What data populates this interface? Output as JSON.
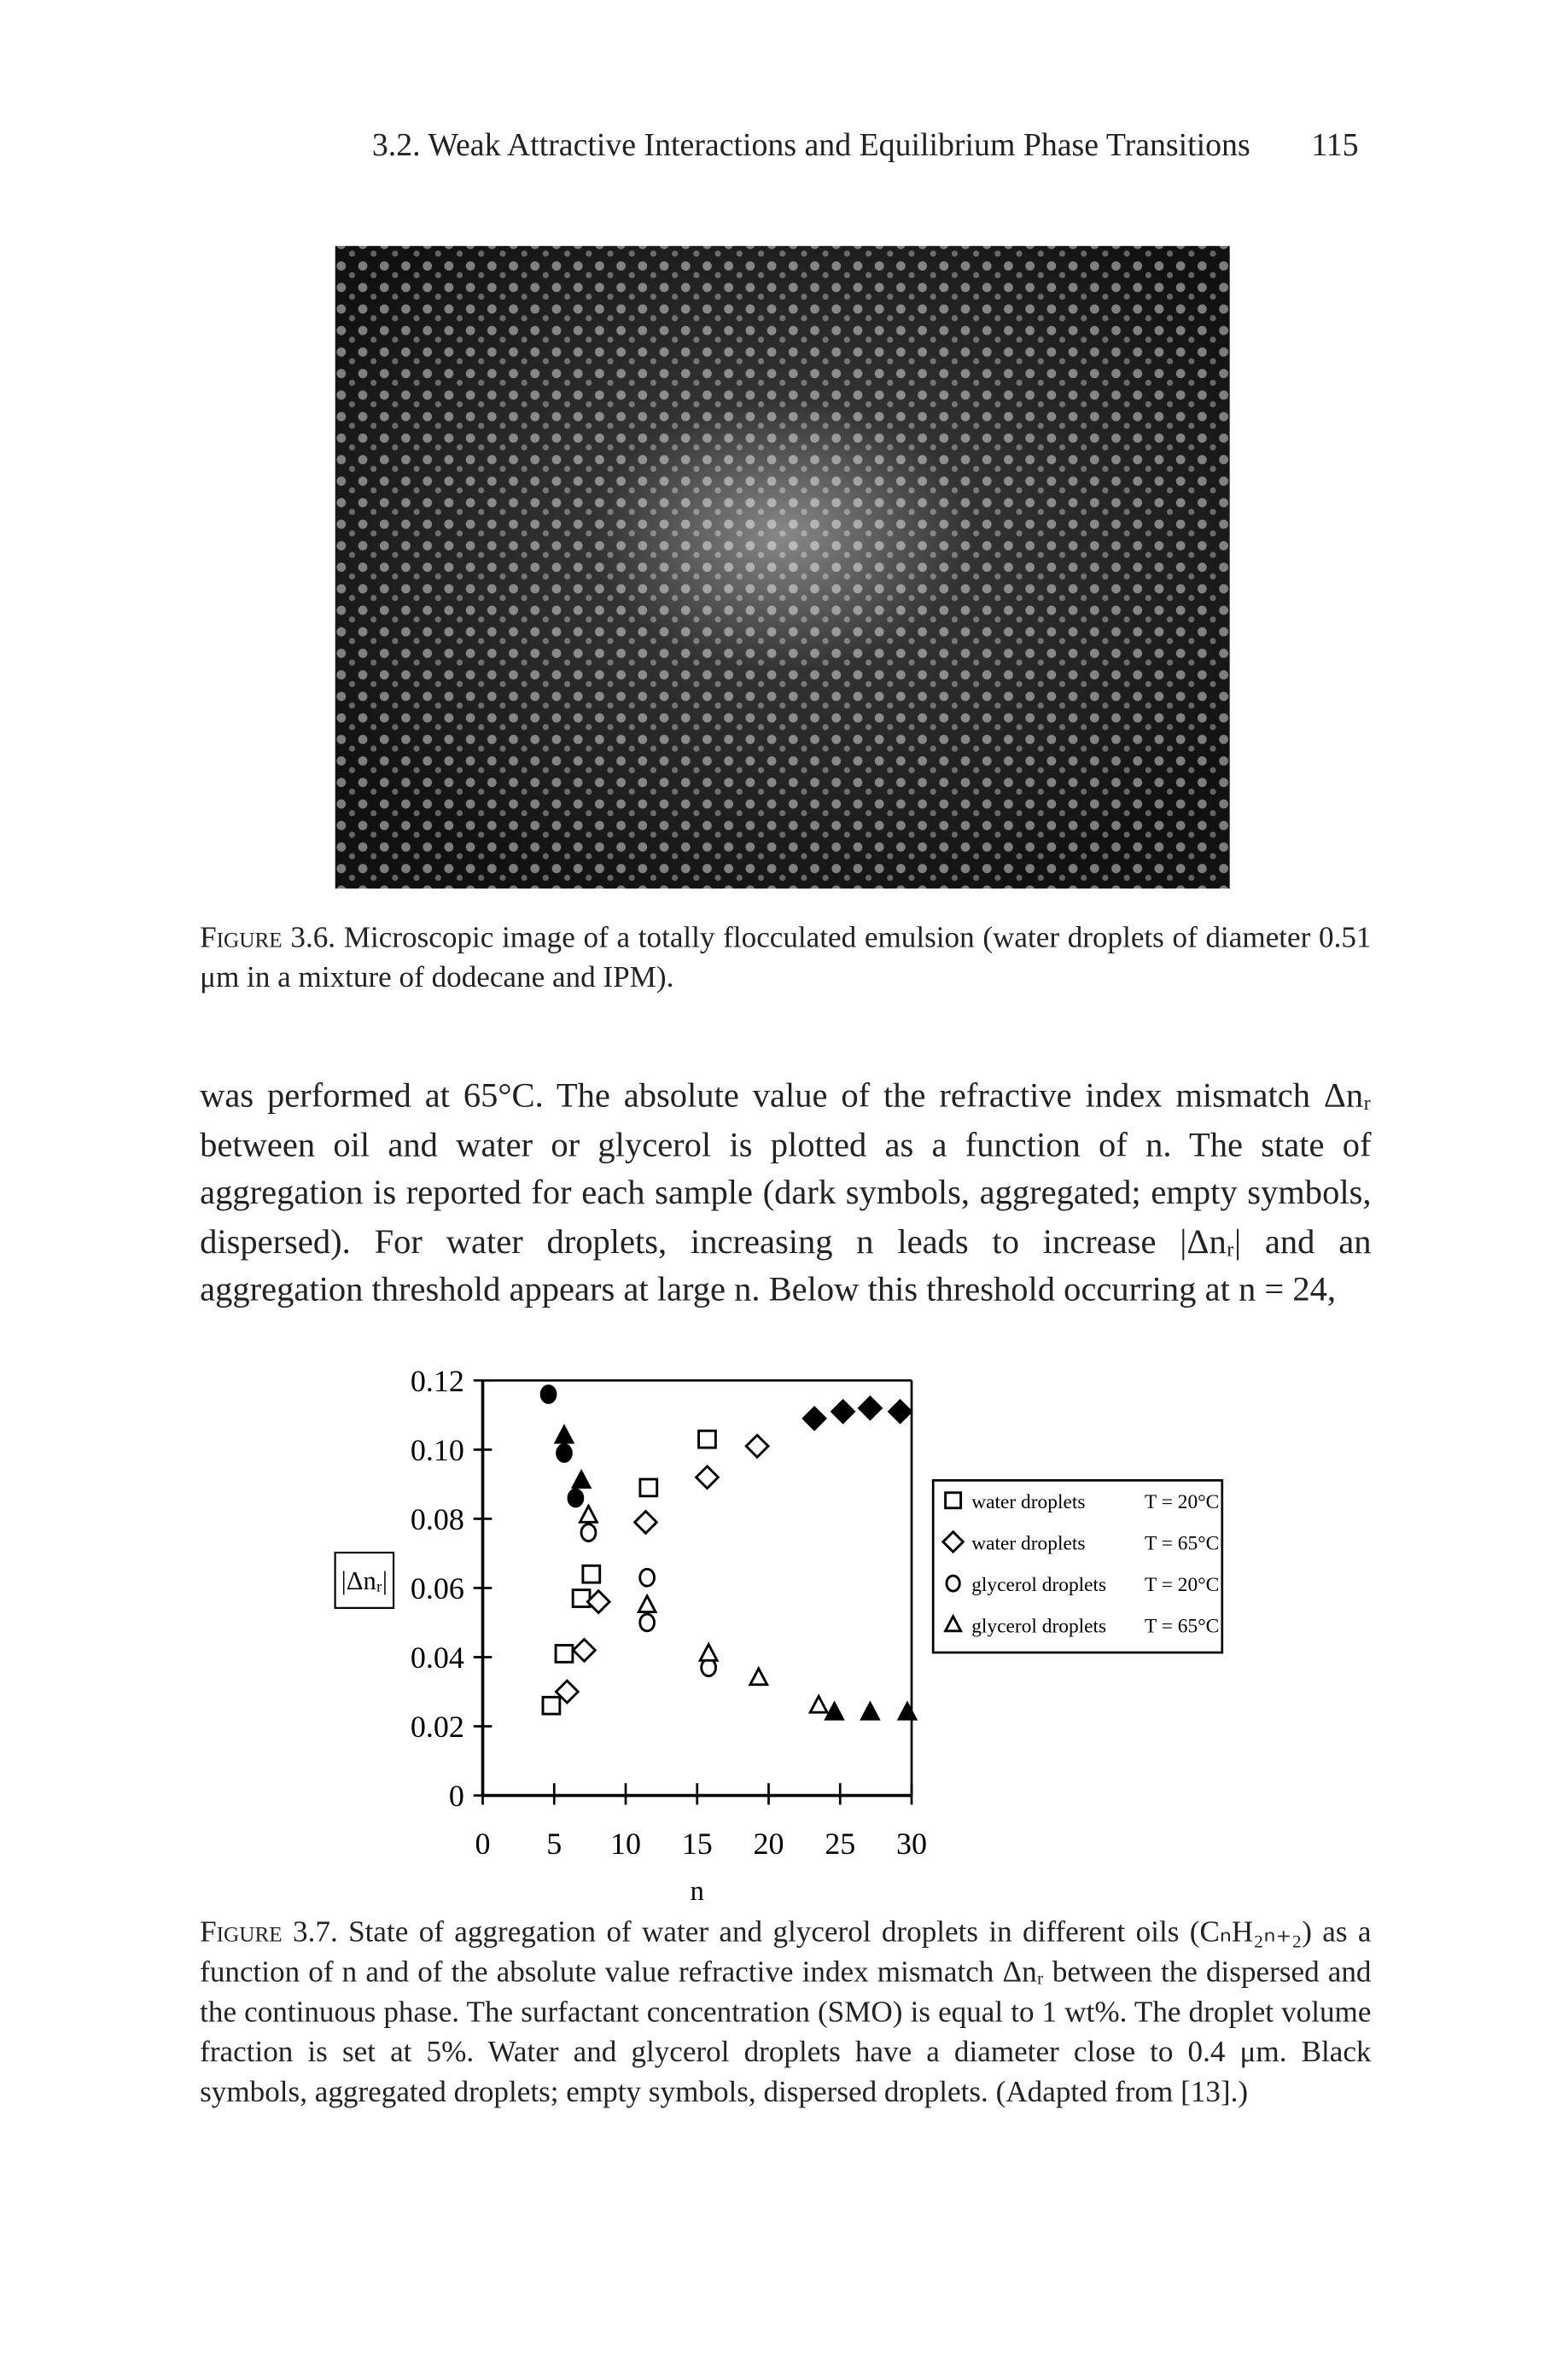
{
  "header": {
    "title": "3.2. Weak Attractive Interactions and Equilibrium Phase Transitions",
    "page": "115"
  },
  "figure_3_6": {
    "label": "Figure 3.6.",
    "caption": "Microscopic image of a totally flocculated emulsion (water droplets of diameter 0.51 μm in a mixture of dodecane and IPM)."
  },
  "body": {
    "paragraph": "was performed at 65°C. The absolute value of the refractive index mismatch Δnᵣ between oil and water or glycerol is plotted as a function of n. The state of aggregation is reported for each sample (dark symbols, aggregated; empty symbols, dispersed). For water droplets, increasing n leads to increase |Δnᵣ| and an aggregation threshold appears at large n. Below this threshold occurring at n = 24,"
  },
  "chart_data": {
    "type": "scatter",
    "x_label": "n",
    "y_label": "|Δnᵣ|",
    "xlim": [
      0,
      30
    ],
    "xticks": [
      0,
      5,
      10,
      15,
      20,
      25,
      30
    ],
    "ylim": [
      0,
      0.12
    ],
    "yticks": [
      0,
      0.02,
      0.04,
      0.06,
      0.08,
      {
        "value": 0.1,
        "label": "0.10"
      },
      0.12
    ],
    "legend": "right",
    "color": "#000000",
    "series": [
      {
        "name": "water droplets",
        "condition": "T = 20°C",
        "marker": "square",
        "x": [
          4.8,
          5.7,
          6.9,
          7.6,
          11.6,
          15.7
        ],
        "values": [
          0.026,
          0.041,
          0.057,
          0.064,
          0.089,
          0.103
        ],
        "filled": [
          false,
          false,
          false,
          false,
          false,
          false
        ]
      },
      {
        "name": "water droplets",
        "condition": "T = 65°C",
        "marker": "diamond",
        "x": [
          5.9,
          7.1,
          8.1,
          11.4,
          15.7,
          19.2,
          23.2,
          25.2,
          27.1,
          29.2
        ],
        "values": [
          0.03,
          0.042,
          0.056,
          0.079,
          0.092,
          0.101,
          0.109,
          0.111,
          0.112,
          0.111
        ],
        "filled": [
          false,
          false,
          false,
          false,
          false,
          false,
          true,
          true,
          true,
          true
        ]
      },
      {
        "name": "glycerol droplets",
        "condition": "T = 20°C",
        "marker": "circle",
        "x": [
          4.6,
          5.7,
          6.5,
          7.4,
          11.5,
          11.5,
          15.8
        ],
        "values": [
          0.116,
          0.099,
          0.086,
          0.076,
          0.063,
          0.05,
          0.037
        ],
        "filled": [
          true,
          true,
          true,
          false,
          false,
          false,
          false
        ]
      },
      {
        "name": "glycerol droplets",
        "condition": "T = 65°C",
        "marker": "triangle",
        "x": [
          5.7,
          6.9,
          7.4,
          11.5,
          15.8,
          19.3,
          23.5,
          24.6,
          27.1,
          29.7
        ],
        "values": [
          0.104,
          0.091,
          0.081,
          0.055,
          0.041,
          0.034,
          0.026,
          0.024,
          0.024,
          0.024
        ],
        "filled": [
          true,
          true,
          false,
          false,
          false,
          false,
          false,
          true,
          true,
          true
        ]
      }
    ]
  },
  "figure_3_7": {
    "label": "Figure 3.7.",
    "caption": "State of aggregation of water and glycerol droplets in different oils (CₙH₂ₙ₊₂) as a function of n and of the absolute value refractive index mismatch Δnᵣ between the dispersed and the continuous phase. The surfactant concentration (SMO) is equal to 1 wt%. The droplet volume fraction is set at 5%. Water and glycerol droplets have a diameter close to 0.4 μm. Black symbols, aggregated droplets; empty symbols, dispersed droplets. (Adapted from [13].)"
  }
}
